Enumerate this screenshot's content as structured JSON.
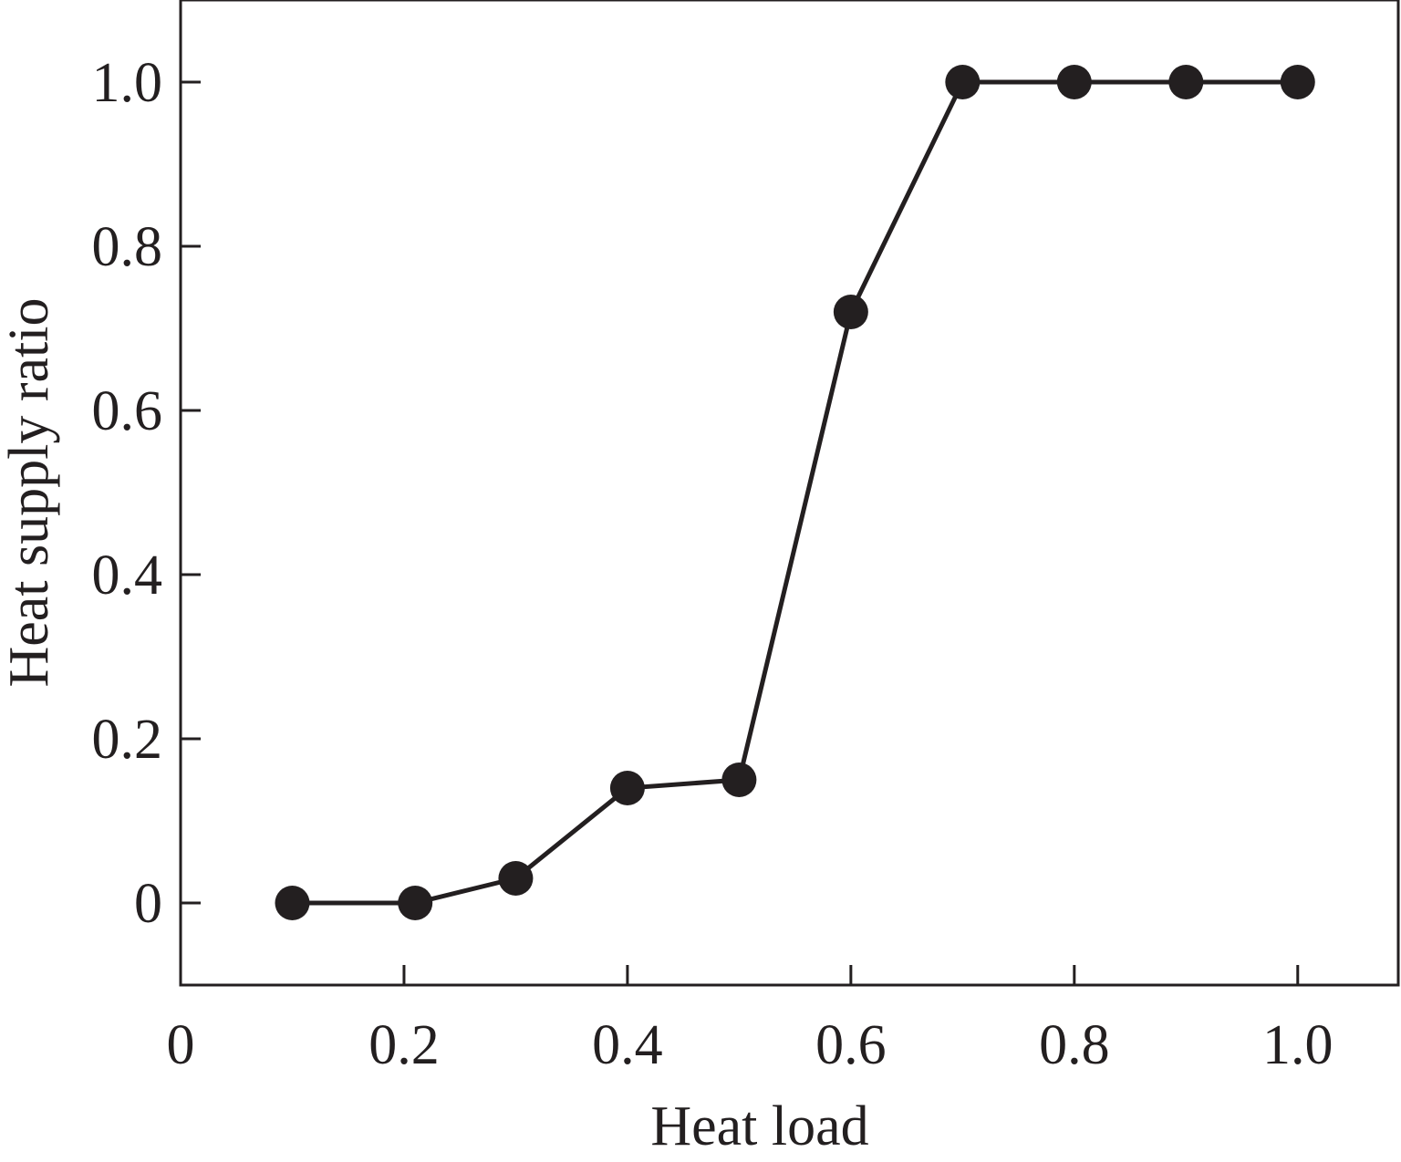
{
  "chart_data": {
    "type": "line",
    "title": "",
    "xlabel": "Heat load",
    "ylabel": "Heat supply ratio",
    "xlim": [
      0,
      1.09
    ],
    "ylim": [
      -0.1,
      1.1
    ],
    "x_ticks": [
      0,
      0.2,
      0.4,
      0.6,
      0.8,
      1.0
    ],
    "x_tick_labels": [
      "0",
      "0.2",
      "0.4",
      "0.6",
      "0.8",
      "1.0"
    ],
    "y_ticks": [
      0,
      0.2,
      0.4,
      0.6,
      0.8,
      1.0
    ],
    "y_tick_labels": [
      "0",
      "0.2",
      "0.4",
      "0.6",
      "0.8",
      "1.0"
    ],
    "grid": false,
    "legend": "none",
    "series": [
      {
        "marker": "filled-circle",
        "color": "#231f20",
        "x": [
          0.1,
          0.21,
          0.3,
          0.4,
          0.5,
          0.6,
          0.7,
          0.8,
          0.9,
          1.0
        ],
        "y": [
          0.0,
          0.0,
          0.03,
          0.14,
          0.15,
          0.72,
          1.0,
          1.0,
          1.0,
          1.0
        ]
      }
    ]
  }
}
